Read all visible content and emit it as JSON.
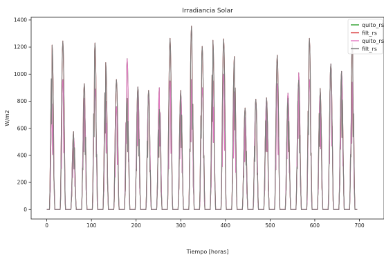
{
  "chart_data": {
    "type": "line",
    "title": "Irradiancia Solar",
    "xlabel": "Tiempo [horas]",
    "ylabel": "W/m2",
    "xlim": [
      -35,
      755
    ],
    "ylim": [
      -70,
      1420
    ],
    "xticks": [
      0,
      100,
      200,
      300,
      400,
      500,
      600,
      700
    ],
    "yticks": [
      0,
      200,
      400,
      600,
      800,
      1000,
      1200,
      1400
    ],
    "grid": false,
    "legend_position": "top-right",
    "colors": {
      "green": "#2ca02c",
      "red": "#d62728",
      "pink": "#e377c2",
      "gray": "#7f7f7f"
    },
    "hours_per_day": 24,
    "series": [
      {
        "name": "quito_rs",
        "color": "#2ca02c"
      },
      {
        "name": "filt_rs",
        "color": "#d62728"
      },
      {
        "name": "quito_rs",
        "color": "#e377c2"
      },
      {
        "name": "filt_rs",
        "color": "#7f7f7f"
      }
    ],
    "daily_peaks": {
      "gray": [
        1215,
        1245,
        575,
        930,
        1230,
        1085,
        960,
        820,
        905,
        880,
        740,
        1265,
        880,
        1355,
        1205,
        1250,
        1260,
        1130,
        750,
        815,
        825,
        1140,
        820,
        955,
        1265,
        895,
        1075,
        1020,
        1230
      ],
      "pink": [
        780,
        960,
        540,
        820,
        890,
        800,
        760,
        1115,
        905,
        840,
        900,
        950,
        860,
        960,
        900,
        950,
        1000,
        870,
        680,
        800,
        820,
        930,
        860,
        1010,
        960,
        860,
        1075,
        1020,
        940
      ]
    }
  }
}
